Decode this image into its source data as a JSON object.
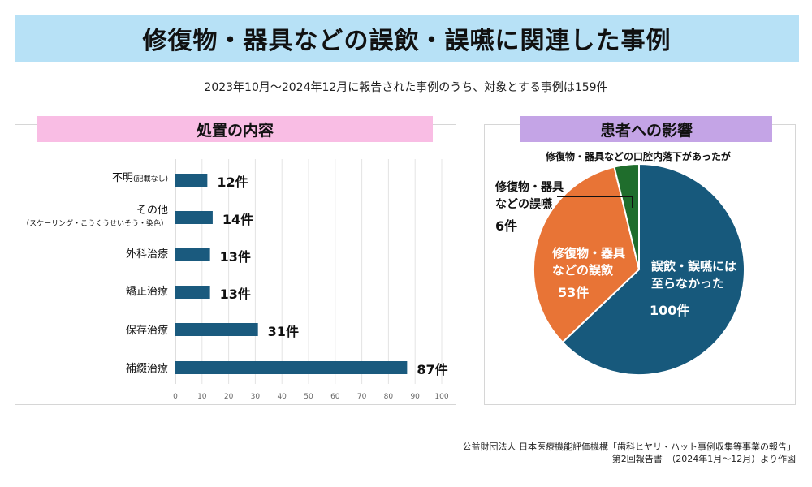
{
  "title": "修復物・器具などの誤飲・誤嚥に関連した事例",
  "subtitle": "2023年10月～2024年12月に報告された事例のうち、対象とする事例は159件",
  "left_header": "処置の内容",
  "right_header": "患者への影響",
  "source_line1": "公益財団法人 日本医療機能評価機構「歯科ヒヤリ・ハット事例収集等事業の報告」",
  "source_line2": "第2回報告書　（2024年1月～12月）より作図",
  "colors": {
    "bar": "#1a5a7e",
    "pie_main": "#17597c",
    "pie_orange": "#e87436",
    "pie_green": "#1f6d2c",
    "title_band": "#b7e1f6"
  },
  "chart_data": [
    {
      "type": "bar",
      "orientation": "horizontal",
      "categories": [
        {
          "label": "不明",
          "note": "(記載なし)",
          "sub": ""
        },
        {
          "label": "その他",
          "note": "",
          "sub": "（スケーリング・こうくうせいそう・染色）"
        },
        {
          "label": "外科治療",
          "note": "",
          "sub": ""
        },
        {
          "label": "矯正治療",
          "note": "",
          "sub": ""
        },
        {
          "label": "保存治療",
          "note": "",
          "sub": ""
        },
        {
          "label": "補綴治療",
          "note": "",
          "sub": ""
        }
      ],
      "values": [
        12,
        14,
        13,
        13,
        31,
        87
      ],
      "value_labels": [
        "12件",
        "14件",
        "13件",
        "13件",
        "31件",
        "87件"
      ],
      "xlim": [
        0,
        100
      ],
      "ticks": [
        "0",
        "10",
        "20",
        "30",
        "40",
        "50",
        "60",
        "70",
        "80",
        "90",
        "100"
      ],
      "grid": true
    },
    {
      "type": "pie",
      "slices": [
        {
          "lines": [
            "誤飲・誤嚥には",
            "至らなかった"
          ],
          "value_label": "100件",
          "value": 100
        },
        {
          "lines": [
            "修復物・器具",
            "などの誤飲"
          ],
          "value_label": "53件",
          "value": 53
        },
        {
          "lines": [
            "修復物・器具",
            "などの誤嚥"
          ],
          "value_label": "6件",
          "value": 6
        }
      ],
      "annotation": "修復物・器具などの口腔内落下があったが"
    }
  ]
}
